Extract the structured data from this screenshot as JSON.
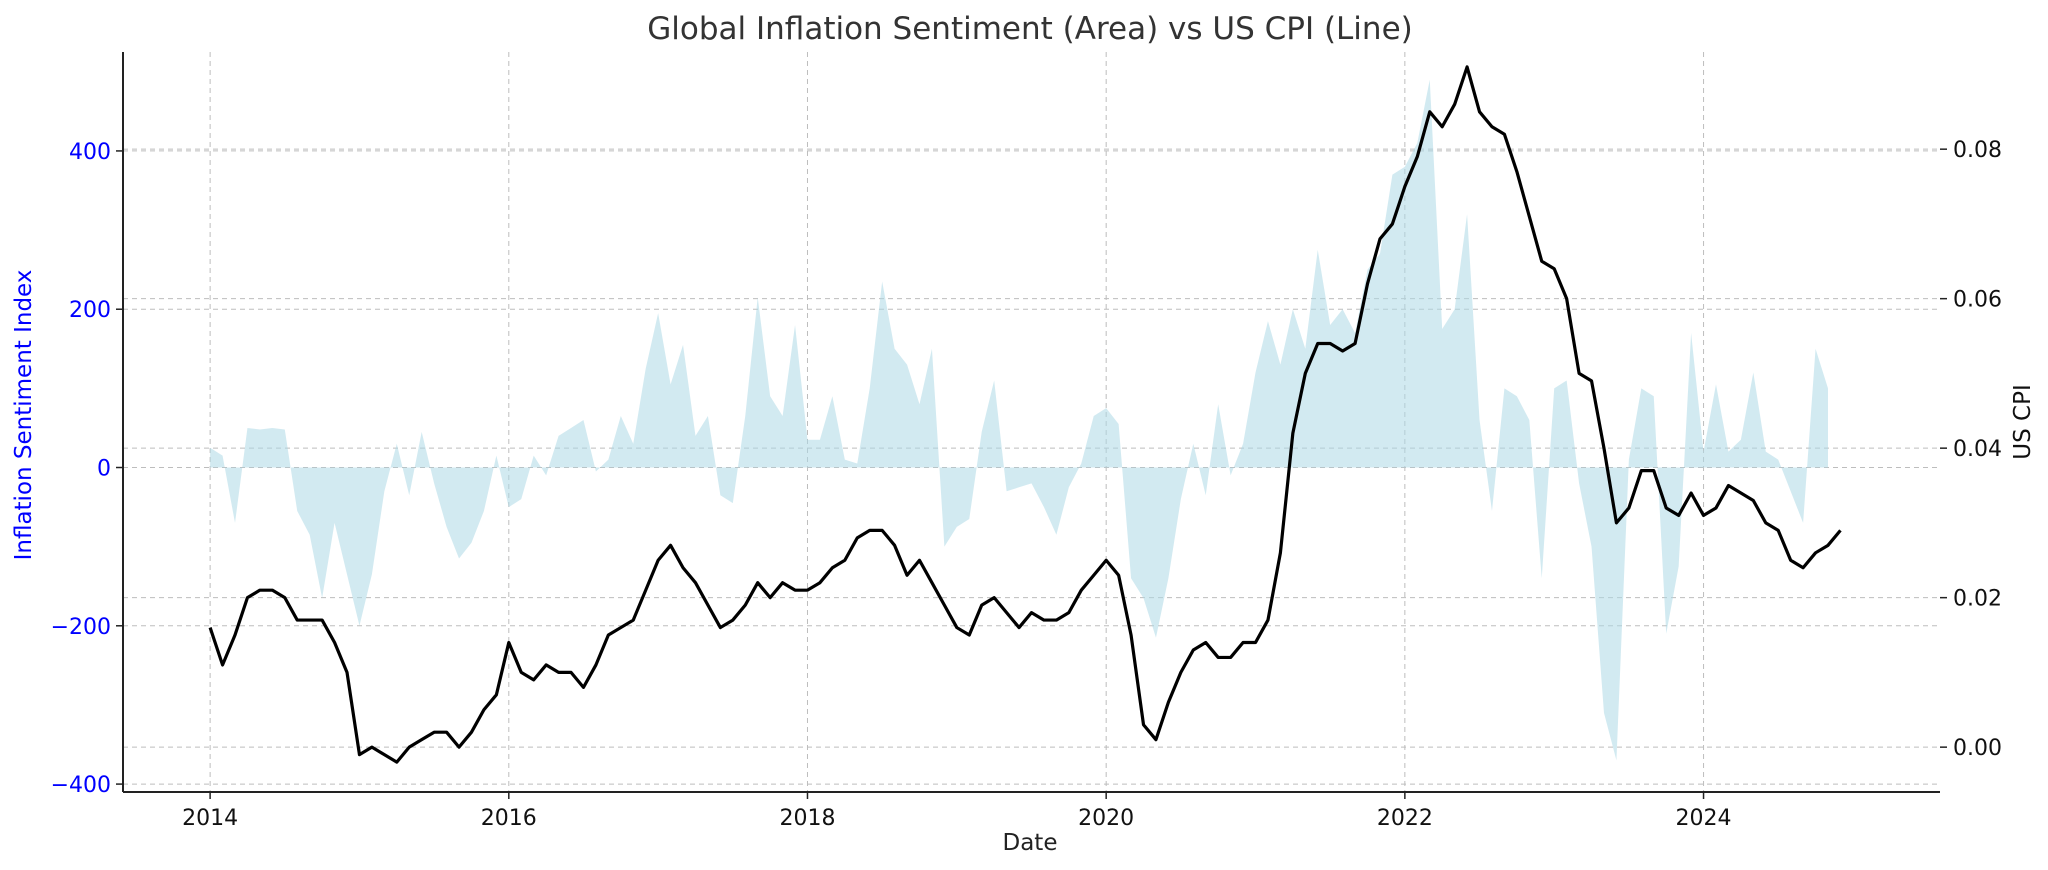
{
  "chart_data": {
    "type": "line",
    "title": "Global Inflation Sentiment (Area) vs US CPI (Line)",
    "xlabel": "Date",
    "ylabel_left": "Inflation Sentiment Index",
    "ylabel_right": "US CPI",
    "xlim": [
      "2013-06",
      "2025-08"
    ],
    "xticks": [
      {
        "label": "2014",
        "date": "2014-01"
      },
      {
        "label": "2016",
        "date": "2016-01"
      },
      {
        "label": "2018",
        "date": "2018-01"
      },
      {
        "label": "2020",
        "date": "2020-01"
      },
      {
        "label": "2022",
        "date": "2022-01"
      },
      {
        "label": "2024",
        "date": "2024-01"
      }
    ],
    "ylim_left": [
      -410,
      525
    ],
    "yticks_left": [
      {
        "label": "400",
        "value": 400
      },
      {
        "label": "200",
        "value": 200
      },
      {
        "label": "0",
        "value": 0
      },
      {
        "label": "−200",
        "value": -200
      },
      {
        "label": "−400",
        "value": -400
      }
    ],
    "ylim_right": [
      -0.006,
      0.093
    ],
    "yticks_right": [
      {
        "label": "0.08",
        "value": 0.08
      },
      {
        "label": "0.06",
        "value": 0.06
      },
      {
        "label": "0.04",
        "value": 0.04
      },
      {
        "label": "0.02",
        "value": 0.02
      },
      {
        "label": "0.00",
        "value": 0.0
      }
    ],
    "grid": true,
    "colors": {
      "area": "#add8e6",
      "line": "#000000",
      "left_axis": "#0000ff",
      "right_axis": "#111111"
    },
    "series": [
      {
        "type": "area",
        "axis": "left",
        "x_start": "2014-01",
        "frequency": "monthly",
        "values": [
          25,
          15,
          -70,
          50,
          48,
          50,
          48,
          -55,
          -85,
          -165,
          -70,
          -135,
          -200,
          -135,
          -30,
          30,
          -35,
          45,
          -20,
          -75,
          -115,
          -95,
          -55,
          15,
          -50,
          -40,
          15,
          -10,
          40,
          50,
          60,
          -5,
          10,
          65,
          30,
          125,
          195,
          105,
          155,
          40,
          65,
          -35,
          -45,
          65,
          215,
          90,
          65,
          180,
          35,
          35,
          90,
          10,
          5,
          100,
          235,
          150,
          130,
          80,
          150,
          -100,
          -75,
          -65,
          45,
          110,
          -30,
          -25,
          -20,
          -50,
          -85,
          -25,
          5,
          65,
          75,
          55,
          -140,
          -165,
          -215,
          -140,
          -40,
          30,
          -35,
          80,
          -10,
          30,
          120,
          185,
          130,
          200,
          150,
          275,
          180,
          200,
          170,
          250,
          270,
          370,
          380,
          410,
          490,
          175,
          200,
          320,
          60,
          -55,
          100,
          90,
          60,
          -140,
          100,
          110,
          -20,
          -100,
          -310,
          -370,
          10,
          100,
          90,
          -210,
          -125,
          170,
          20,
          105,
          20,
          35,
          120,
          20,
          10,
          -30,
          -70,
          150,
          100
        ]
      },
      {
        "type": "line",
        "axis": "right",
        "x_start": "2014-01",
        "frequency": "monthly",
        "values": [
          0.016,
          0.011,
          0.015,
          0.02,
          0.021,
          0.021,
          0.02,
          0.017,
          0.017,
          0.017,
          0.014,
          0.01,
          -0.001,
          0.0,
          -0.001,
          -0.002,
          0.0,
          0.001,
          0.002,
          0.002,
          0.0,
          0.002,
          0.005,
          0.007,
          0.014,
          0.01,
          0.009,
          0.011,
          0.01,
          0.01,
          0.008,
          0.011,
          0.015,
          0.016,
          0.017,
          0.021,
          0.025,
          0.027,
          0.024,
          0.022,
          0.019,
          0.016,
          0.017,
          0.019,
          0.022,
          0.02,
          0.022,
          0.021,
          0.021,
          0.022,
          0.024,
          0.025,
          0.028,
          0.029,
          0.029,
          0.027,
          0.023,
          0.025,
          0.022,
          0.019,
          0.016,
          0.015,
          0.019,
          0.02,
          0.018,
          0.016,
          0.018,
          0.017,
          0.017,
          0.018,
          0.021,
          0.023,
          0.025,
          0.023,
          0.015,
          0.003,
          0.001,
          0.006,
          0.01,
          0.013,
          0.014,
          0.012,
          0.012,
          0.014,
          0.014,
          0.017,
          0.026,
          0.042,
          0.05,
          0.054,
          0.054,
          0.053,
          0.054,
          0.062,
          0.068,
          0.07,
          0.075,
          0.079,
          0.085,
          0.083,
          0.086,
          0.091,
          0.085,
          0.083,
          0.082,
          0.077,
          0.071,
          0.065,
          0.064,
          0.06,
          0.05,
          0.049,
          0.04,
          0.03,
          0.032,
          0.037,
          0.037,
          0.032,
          0.031,
          0.034,
          0.031,
          0.032,
          0.035,
          0.034,
          0.033,
          0.03,
          0.029,
          0.025,
          0.024,
          0.026,
          0.027,
          0.029
        ]
      }
    ]
  }
}
